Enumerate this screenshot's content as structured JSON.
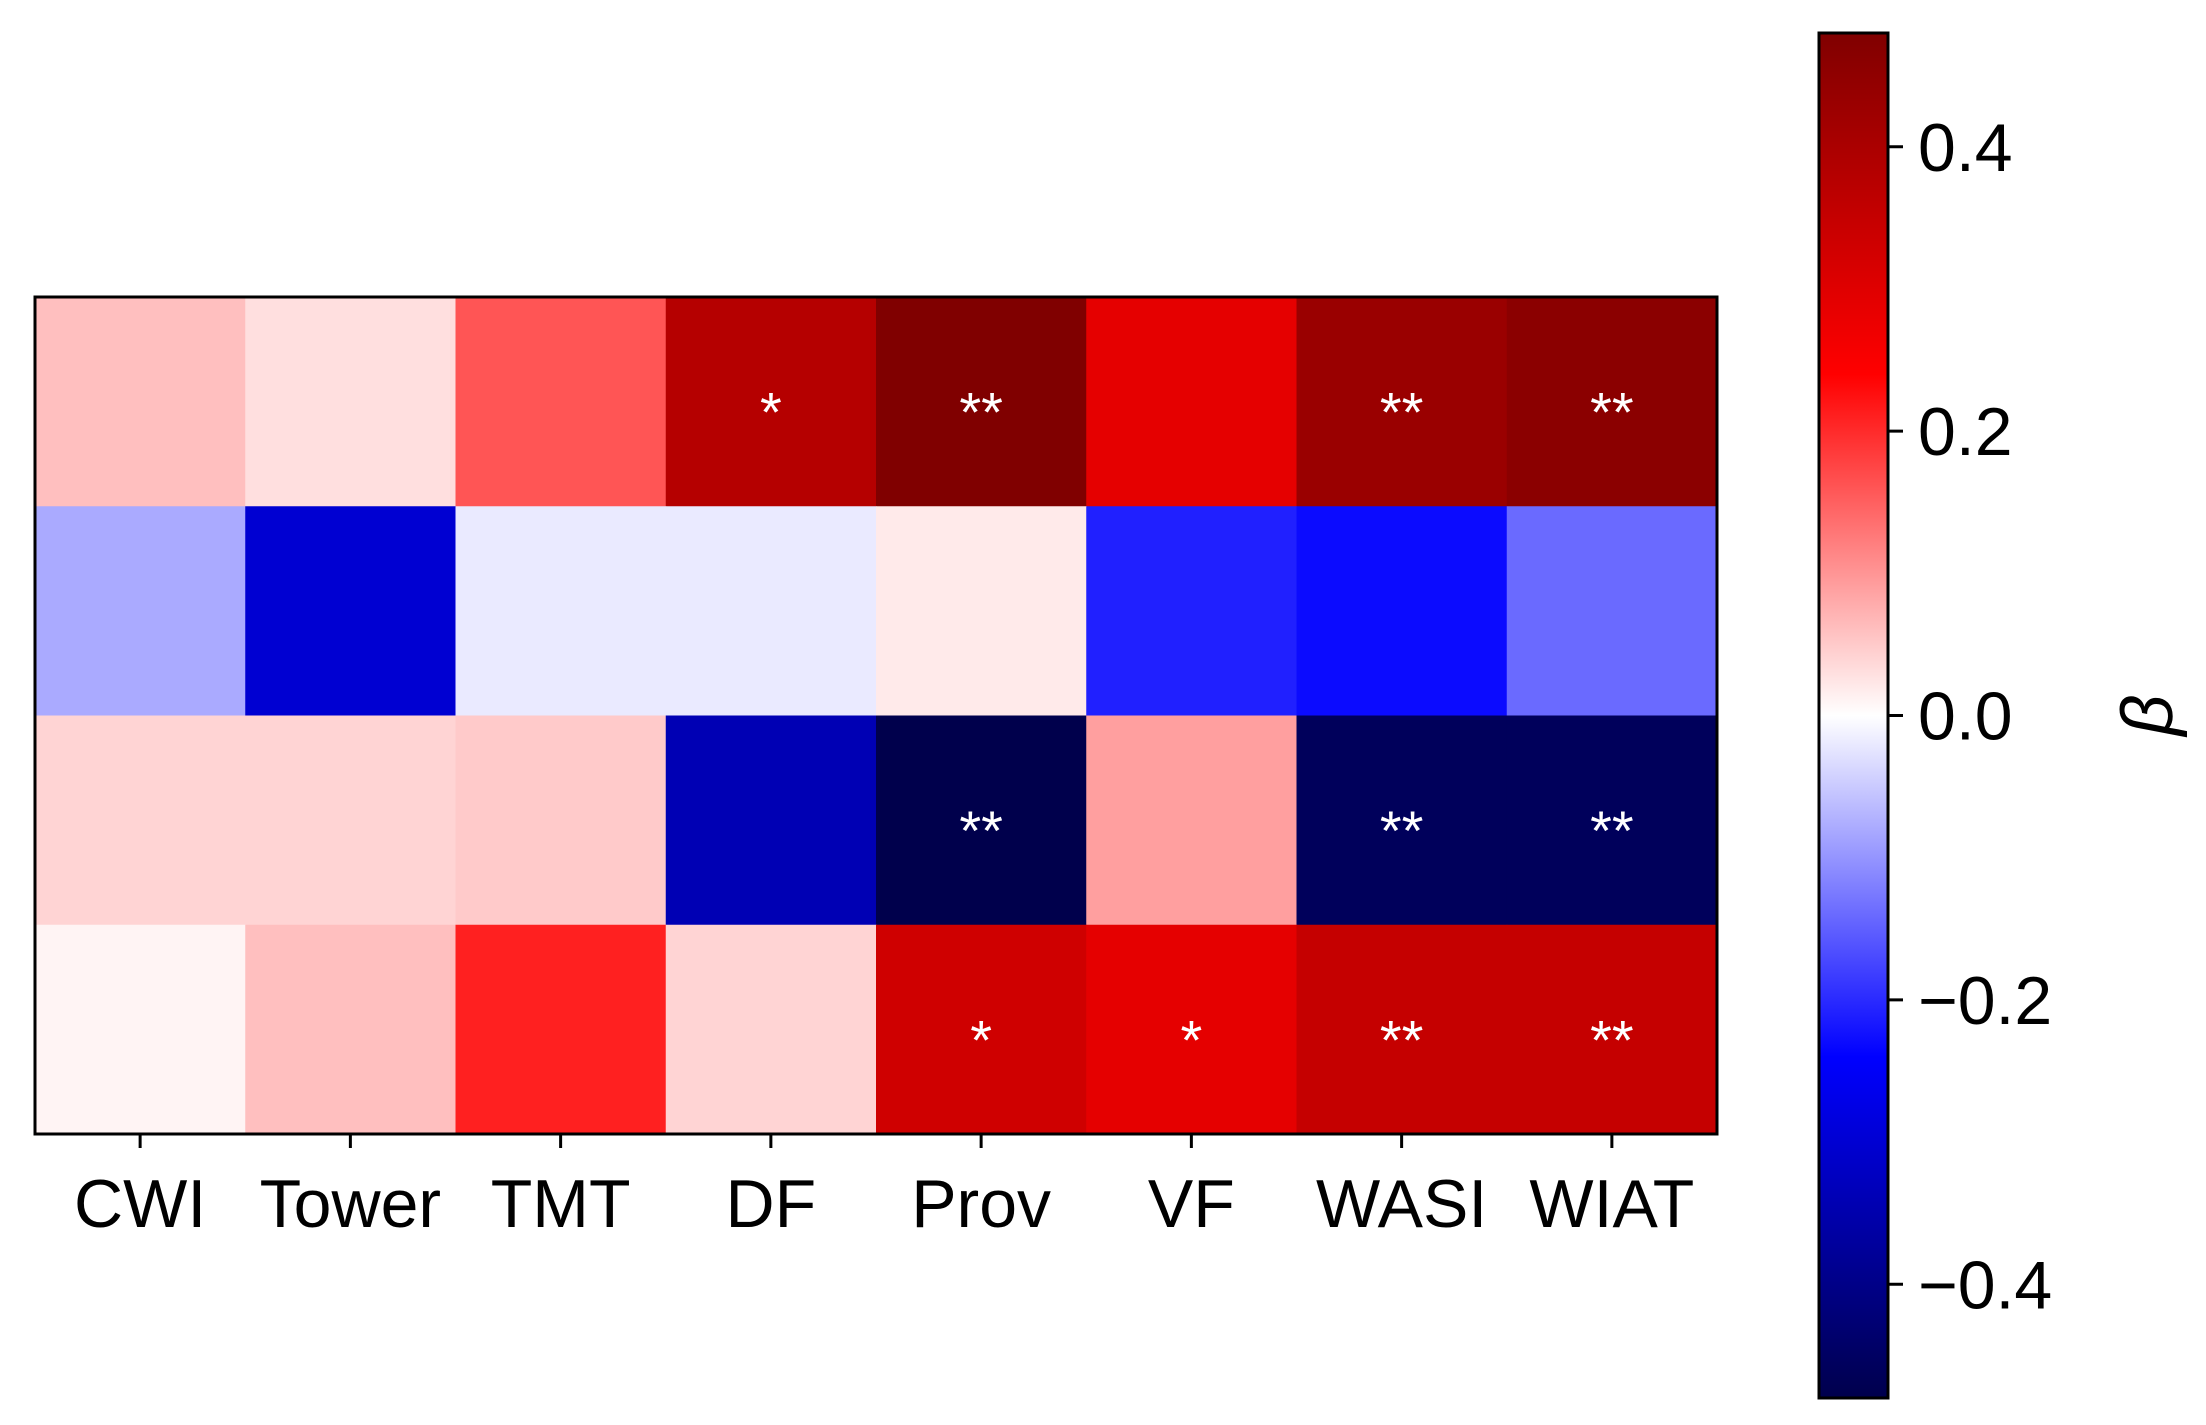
{
  "chart_data": {
    "type": "heatmap",
    "title": "",
    "xlabel": "",
    "ylabel": "",
    "x_categories": [
      "CWI",
      "Tower",
      "TMT",
      "DF",
      "Prov",
      "VF",
      "WASI",
      "WIAT"
    ],
    "y_categories": [
      "",
      "",
      "",
      ""
    ],
    "values": [
      [
        0.06,
        0.03,
        0.16,
        0.38,
        0.48,
        0.29,
        0.43,
        0.46
      ],
      [
        -0.08,
        -0.3,
        -0.02,
        -0.02,
        0.02,
        -0.21,
        -0.23,
        -0.14
      ],
      [
        0.04,
        0.04,
        0.05,
        -0.34,
        -0.48,
        0.09,
        -0.46,
        -0.46
      ],
      [
        0.01,
        0.06,
        0.21,
        0.04,
        0.33,
        0.29,
        0.35,
        0.35
      ]
    ],
    "annotations": [
      [
        "",
        "",
        "",
        "*",
        "**",
        "",
        "**",
        "**"
      ],
      [
        "",
        "",
        "",
        "",
        "",
        "",
        "",
        ""
      ],
      [
        "",
        "",
        "",
        "",
        "**",
        "",
        "**",
        "**"
      ],
      [
        "",
        "",
        "",
        "",
        "*",
        "*",
        "**",
        "**"
      ]
    ],
    "colormap": "seismic",
    "colorbar": {
      "label": "β",
      "range": [
        -0.48,
        0.48
      ],
      "ticks": [
        -0.4,
        -0.2,
        0.0,
        0.2,
        0.4
      ],
      "tick_labels": [
        "−0.4",
        "−0.2",
        "0.0",
        "0.2",
        "0.4"
      ]
    }
  }
}
